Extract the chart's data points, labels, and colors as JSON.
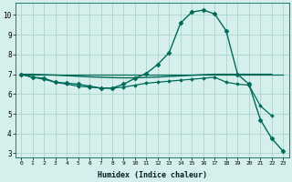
{
  "xlabel": "Humidex (Indice chaleur)",
  "bg_color": "#d5f0ec",
  "grid_color": "#aad4cc",
  "line_color": "#006a5a",
  "xlim": [
    -0.5,
    23.5
  ],
  "ylim": [
    2.8,
    10.6
  ],
  "yticks": [
    3,
    4,
    5,
    6,
    7,
    8,
    9,
    10
  ],
  "xticks": [
    0,
    1,
    2,
    3,
    4,
    5,
    6,
    7,
    8,
    9,
    10,
    11,
    12,
    13,
    14,
    15,
    16,
    17,
    18,
    19,
    20,
    21,
    22,
    23
  ],
  "series": [
    {
      "x": [
        0,
        1,
        2,
        3,
        4,
        5,
        6,
        7,
        8,
        9,
        10,
        11,
        12,
        13,
        14,
        15,
        16,
        17,
        18,
        19,
        20,
        21,
        22,
        23
      ],
      "y": [
        7.0,
        6.85,
        6.8,
        6.6,
        6.55,
        6.5,
        6.4,
        6.3,
        6.3,
        6.5,
        6.8,
        7.05,
        7.5,
        8.1,
        9.6,
        10.15,
        10.25,
        10.05,
        9.2,
        7.0,
        6.5,
        4.7,
        3.75,
        3.1
      ],
      "marker": "D",
      "markersize": 2.5,
      "linewidth": 1.0,
      "color": "#006a5a"
    },
    {
      "x": [
        0,
        1,
        2,
        3,
        4,
        5,
        6,
        7,
        8,
        9,
        10,
        11,
        12,
        13,
        14,
        15,
        16,
        17,
        18,
        19,
        20,
        21,
        22,
        23
      ],
      "y": [
        7.0,
        6.85,
        6.75,
        6.6,
        6.5,
        6.4,
        6.35,
        6.3,
        6.3,
        6.35,
        6.45,
        6.55,
        6.6,
        6.65,
        6.7,
        6.75,
        6.8,
        6.85,
        6.6,
        6.5,
        6.45,
        5.4,
        4.9,
        null
      ],
      "marker": "D",
      "markersize": 1.8,
      "linewidth": 0.9,
      "color": "#006a5a"
    },
    {
      "x": [
        0,
        1,
        2,
        3,
        4,
        5,
        6,
        7,
        8,
        9,
        10,
        11,
        12,
        13,
        14,
        15,
        16,
        17,
        18,
        19,
        20,
        21,
        22,
        23
      ],
      "y": [
        7.0,
        7.0,
        6.98,
        6.96,
        6.93,
        6.9,
        6.87,
        6.85,
        6.83,
        6.82,
        6.82,
        6.84,
        6.86,
        6.89,
        6.92,
        6.95,
        6.98,
        7.0,
        7.0,
        7.0,
        7.0,
        7.0,
        7.0,
        null
      ],
      "marker": null,
      "markersize": 0,
      "linewidth": 1.0,
      "color": "#006a5a"
    },
    {
      "x": [
        0,
        23
      ],
      "y": [
        7.0,
        7.0
      ],
      "marker": null,
      "markersize": 0,
      "linewidth": 0.9,
      "color": "#006a5a"
    }
  ]
}
